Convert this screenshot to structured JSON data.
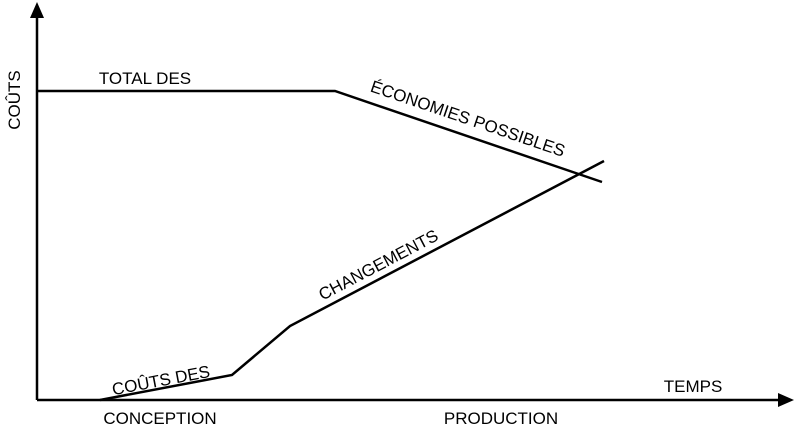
{
  "axes": {
    "y_label": "COÛTS",
    "x_label": "TEMPS"
  },
  "curves": {
    "total": {
      "label_top": "TOTAL DES",
      "label_slope": "ÉCONOMIES POSSIBLES"
    },
    "changes": {
      "label_low": "COÛTS DES",
      "label_high": "CHANGEMENTS"
    }
  },
  "phases": [
    "CONCEPTION",
    "PRODUCTION"
  ]
}
